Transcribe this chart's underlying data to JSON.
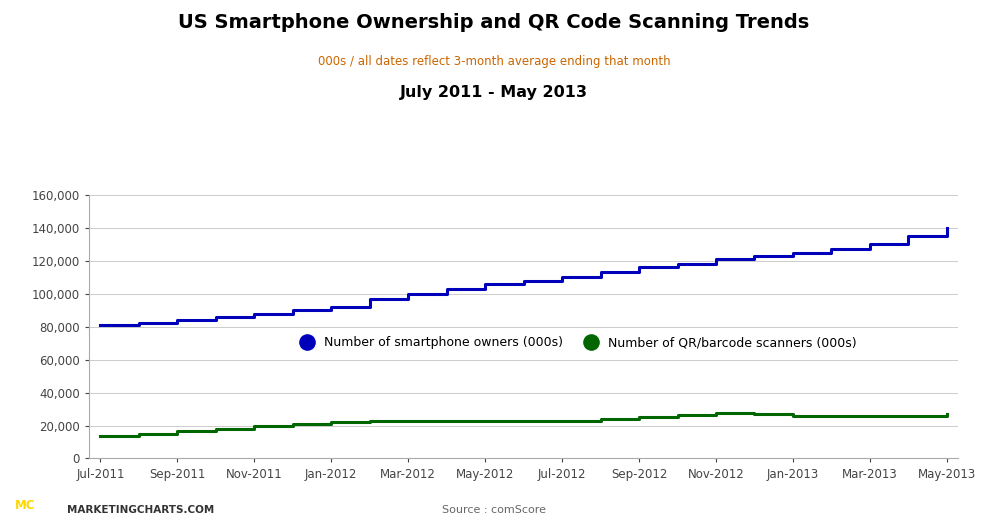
{
  "title": "US Smartphone Ownership and QR Code Scanning Trends",
  "subtitle": "000s / all dates reflect 3-month average ending that month",
  "date_range": "July 2011 - May 2013",
  "source": "Source : comScore",
  "watermark": "MARKETINGCHARTS.COM",
  "title_color": "#000000",
  "subtitle_color": "#cc6600",
  "date_range_color": "#000000",
  "background_color": "#ffffff",
  "x_labels": [
    "Jul-2011",
    "Sep-2011",
    "Nov-2011",
    "Jan-2012",
    "Mar-2012",
    "May-2012",
    "Jul-2012",
    "Sep-2012",
    "Nov-2012",
    "Jan-2013",
    "Mar-2013",
    "May-2013"
  ],
  "smartphone_color": "#0000bb",
  "qr_color": "#006600",
  "smartphone_vals": [
    81000,
    82000,
    84000,
    86000,
    88000,
    90000,
    92000,
    97000,
    100000,
    103000,
    106000,
    108000,
    110000,
    113000,
    116000,
    118000,
    121000,
    123000,
    125000,
    127000,
    130000,
    135000,
    140000
  ],
  "qr_vals": [
    13500,
    15000,
    16500,
    18000,
    19500,
    21000,
    22000,
    22500,
    23000,
    23000,
    22500,
    22500,
    23000,
    24000,
    25000,
    26500,
    27500,
    27000,
    26000,
    25500,
    25500,
    26000,
    27000
  ],
  "ylim": [
    0,
    160000
  ],
  "yticks": [
    0,
    20000,
    40000,
    60000,
    80000,
    100000,
    120000,
    140000,
    160000
  ],
  "legend_smartphone": "Number of smartphone owners (000s)",
  "legend_qr": "Number of QR/barcode scanners (000s)",
  "xtick_pos": [
    0,
    2,
    4,
    6,
    8,
    10,
    12,
    14,
    16,
    18,
    20,
    22
  ]
}
